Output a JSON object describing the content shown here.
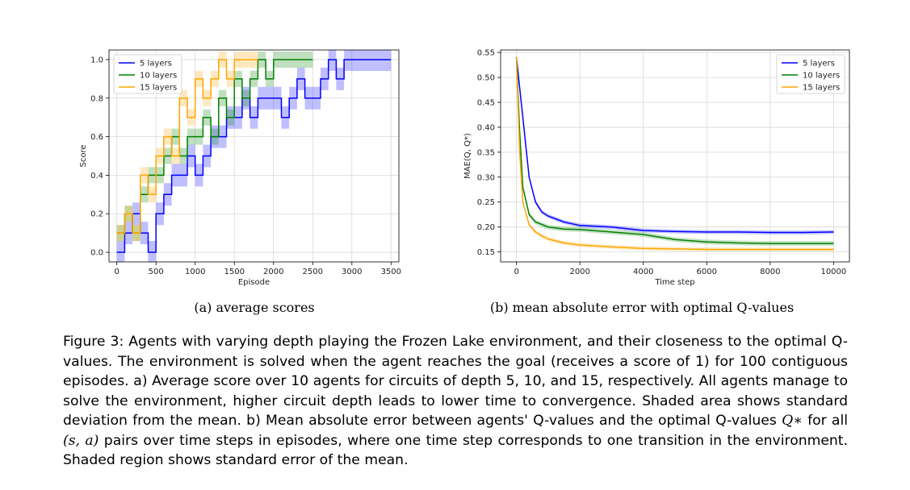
{
  "chart_data": [
    {
      "type": "line",
      "xlabel": "Episode",
      "ylabel": "Score",
      "xlim": [
        -100,
        3600
      ],
      "ylim": [
        -0.05,
        1.05
      ],
      "xticks": [
        "0",
        "500",
        "1000",
        "1500",
        "2000",
        "2500",
        "3000",
        "3500"
      ],
      "yticks": [
        "0.0",
        "0.2",
        "0.4",
        "0.6",
        "0.8",
        "1.0"
      ],
      "grid": true,
      "legend": "top-left",
      "shaded": "standard deviation",
      "series": [
        {
          "name": "5 layers",
          "color": "#0000ff",
          "x": [
            0,
            100,
            200,
            300,
            400,
            500,
            600,
            700,
            800,
            900,
            1000,
            1100,
            1200,
            1300,
            1400,
            1500,
            1600,
            1700,
            1800,
            1900,
            2000,
            2100,
            2200,
            2300,
            2400,
            2500,
            2600,
            2700,
            2800,
            2900,
            3000,
            3100,
            3200,
            3300,
            3400,
            3500
          ],
          "y": [
            0.0,
            0.1,
            0.2,
            0.1,
            0.0,
            0.2,
            0.3,
            0.4,
            0.4,
            0.5,
            0.4,
            0.5,
            0.6,
            0.6,
            0.7,
            0.7,
            0.8,
            0.7,
            0.8,
            0.8,
            0.8,
            0.7,
            0.8,
            0.9,
            0.8,
            0.8,
            0.9,
            1.0,
            0.9,
            1.0,
            1.0,
            1.0,
            1.0,
            1.0,
            1.0,
            1.0
          ]
        },
        {
          "name": "10 layers",
          "color": "#008000",
          "x": [
            0,
            100,
            200,
            300,
            400,
            500,
            600,
            700,
            800,
            900,
            1000,
            1100,
            1200,
            1300,
            1400,
            1500,
            1600,
            1700,
            1800,
            1900,
            2000,
            2100,
            2200,
            2300,
            2400,
            2500
          ],
          "y": [
            0.1,
            0.2,
            0.1,
            0.3,
            0.4,
            0.4,
            0.5,
            0.6,
            0.5,
            0.6,
            0.6,
            0.7,
            0.6,
            0.8,
            0.7,
            0.9,
            0.8,
            0.9,
            1.0,
            0.9,
            1.0,
            1.0,
            1.0,
            1.0,
            1.0,
            1.0
          ]
        },
        {
          "name": "15 layers",
          "color": "#ffa500",
          "x": [
            0,
            100,
            200,
            300,
            400,
            500,
            600,
            700,
            800,
            900,
            1000,
            1100,
            1200,
            1300,
            1400,
            1500,
            1600,
            1700,
            1800
          ],
          "y": [
            0.1,
            0.2,
            0.1,
            0.4,
            0.3,
            0.5,
            0.6,
            0.5,
            0.8,
            0.7,
            0.9,
            0.8,
            0.9,
            1.0,
            0.9,
            1.0,
            1.0,
            1.0,
            1.0
          ]
        }
      ],
      "subcaption": "(a) average scores"
    },
    {
      "type": "line",
      "xlabel": "Time step",
      "ylabel": "MAE(Q, Q*)",
      "xlim": [
        -500,
        10500
      ],
      "ylim": [
        0.13,
        0.555
      ],
      "xticks": [
        "0",
        "2000",
        "4000",
        "6000",
        "8000",
        "10000"
      ],
      "yticks": [
        "0.15",
        "0.20",
        "0.25",
        "0.30",
        "0.35",
        "0.40",
        "0.45",
        "0.50",
        "0.55"
      ],
      "grid": true,
      "legend": "top-right",
      "shaded": "standard error of the mean",
      "series": [
        {
          "name": "5 layers",
          "color": "#0000ff",
          "x": [
            0,
            200,
            400,
            600,
            800,
            1000,
            1500,
            2000,
            3000,
            4000,
            5000,
            6000,
            7000,
            8000,
            9000,
            10000
          ],
          "y": [
            0.54,
            0.42,
            0.3,
            0.25,
            0.23,
            0.222,
            0.21,
            0.203,
            0.2,
            0.193,
            0.191,
            0.19,
            0.19,
            0.189,
            0.189,
            0.19
          ]
        },
        {
          "name": "10 layers",
          "color": "#008000",
          "x": [
            0,
            100,
            200,
            400,
            600,
            800,
            1000,
            1500,
            2000,
            3000,
            4000,
            5000,
            6000,
            7000,
            8000,
            9000,
            10000
          ],
          "y": [
            0.54,
            0.39,
            0.28,
            0.225,
            0.21,
            0.205,
            0.2,
            0.196,
            0.195,
            0.19,
            0.185,
            0.175,
            0.17,
            0.168,
            0.167,
            0.167,
            0.167
          ]
        },
        {
          "name": "15 layers",
          "color": "#ffa500",
          "x": [
            0,
            100,
            200,
            400,
            600,
            800,
            1000,
            1500,
            2000,
            3000,
            4000,
            5000,
            6000,
            7000,
            8000,
            9000,
            10000
          ],
          "y": [
            0.54,
            0.35,
            0.25,
            0.205,
            0.19,
            0.182,
            0.176,
            0.168,
            0.164,
            0.16,
            0.157,
            0.156,
            0.155,
            0.155,
            0.155,
            0.155,
            0.155
          ]
        }
      ],
      "subcaption": "(b) mean absolute error with optimal Q-values"
    }
  ],
  "caption": {
    "p1": "Figure 3: Agents with varying depth playing the Frozen Lake environment, and their closeness to the optimal Q-values. The environment is solved when the agent reaches the goal (receives a score of 1) for 100 contiguous episodes. a) Average score over 10 agents for circuits of depth 5, 10, and 15, respectively. All agents manage to solve the environment, higher circuit depth leads to lower time to convergence. Shaded area shows standard deviation from the mean. b) Mean absolute error between agents' Q-values and the optimal Q-values",
    "math1": "Q∗",
    "p2": "for all",
    "math2": "(s, a)",
    "p3": "pairs over time steps in episodes, where one time step corresponds to one transition in the environment. Shaded region shows standard error of the mean."
  }
}
